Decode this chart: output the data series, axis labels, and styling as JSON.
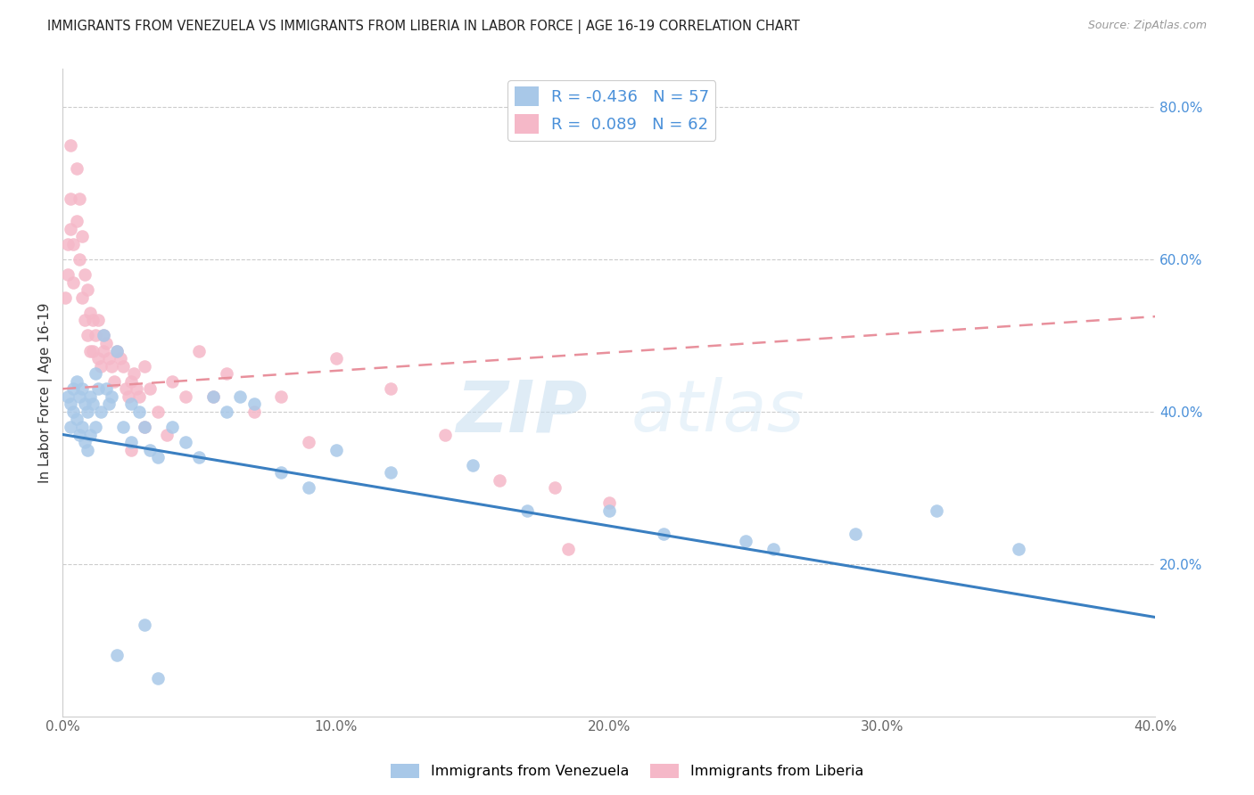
{
  "title": "IMMIGRANTS FROM VENEZUELA VS IMMIGRANTS FROM LIBERIA IN LABOR FORCE | AGE 16-19 CORRELATION CHART",
  "source": "Source: ZipAtlas.com",
  "ylabel": "In Labor Force | Age 16-19",
  "xlim": [
    0.0,
    0.4
  ],
  "ylim": [
    0.0,
    0.85
  ],
  "xticks": [
    0.0,
    0.1,
    0.2,
    0.3,
    0.4
  ],
  "yticks_right": [
    0.2,
    0.4,
    0.6,
    0.8
  ],
  "legend_r_venezuela": "-0.436",
  "legend_n_venezuela": "57",
  "legend_r_liberia": "0.089",
  "legend_n_liberia": "62",
  "color_venezuela": "#a8c8e8",
  "color_liberia": "#f5b8c8",
  "color_trendline_venezuela": "#3a7fc1",
  "color_trendline_liberia": "#e8909c",
  "watermark_zip": "ZIP",
  "watermark_atlas": "atlas",
  "trendline_ven_x0": 0.0,
  "trendline_ven_y0": 0.37,
  "trendline_ven_x1": 0.4,
  "trendline_ven_y1": 0.13,
  "trendline_lib_x0": 0.0,
  "trendline_lib_y0": 0.43,
  "trendline_lib_x1": 0.4,
  "trendline_lib_y1": 0.525,
  "venezuela_scatter_x": [
    0.002,
    0.003,
    0.003,
    0.004,
    0.004,
    0.005,
    0.005,
    0.006,
    0.006,
    0.007,
    0.007,
    0.008,
    0.008,
    0.009,
    0.009,
    0.01,
    0.01,
    0.011,
    0.012,
    0.012,
    0.013,
    0.014,
    0.015,
    0.016,
    0.017,
    0.018,
    0.02,
    0.022,
    0.025,
    0.025,
    0.028,
    0.03,
    0.032,
    0.035,
    0.04,
    0.045,
    0.05,
    0.055,
    0.06,
    0.065,
    0.07,
    0.08,
    0.09,
    0.1,
    0.12,
    0.15,
    0.17,
    0.2,
    0.22,
    0.25,
    0.26,
    0.29,
    0.32,
    0.35,
    0.02,
    0.03,
    0.035
  ],
  "venezuela_scatter_y": [
    0.42,
    0.41,
    0.38,
    0.43,
    0.4,
    0.44,
    0.39,
    0.42,
    0.37,
    0.43,
    0.38,
    0.41,
    0.36,
    0.4,
    0.35,
    0.42,
    0.37,
    0.41,
    0.45,
    0.38,
    0.43,
    0.4,
    0.5,
    0.43,
    0.41,
    0.42,
    0.48,
    0.38,
    0.41,
    0.36,
    0.4,
    0.38,
    0.35,
    0.34,
    0.38,
    0.36,
    0.34,
    0.42,
    0.4,
    0.42,
    0.41,
    0.32,
    0.3,
    0.35,
    0.32,
    0.33,
    0.27,
    0.27,
    0.24,
    0.23,
    0.22,
    0.24,
    0.27,
    0.22,
    0.08,
    0.12,
    0.05
  ],
  "liberia_scatter_x": [
    0.001,
    0.002,
    0.002,
    0.003,
    0.003,
    0.004,
    0.004,
    0.005,
    0.005,
    0.006,
    0.006,
    0.007,
    0.007,
    0.008,
    0.008,
    0.009,
    0.009,
    0.01,
    0.01,
    0.011,
    0.011,
    0.012,
    0.013,
    0.013,
    0.014,
    0.015,
    0.015,
    0.016,
    0.017,
    0.018,
    0.019,
    0.02,
    0.021,
    0.022,
    0.023,
    0.024,
    0.025,
    0.026,
    0.027,
    0.028,
    0.03,
    0.032,
    0.035,
    0.038,
    0.04,
    0.045,
    0.05,
    0.055,
    0.06,
    0.07,
    0.08,
    0.09,
    0.1,
    0.12,
    0.14,
    0.16,
    0.18,
    0.2,
    0.025,
    0.03,
    0.185,
    0.003
  ],
  "liberia_scatter_y": [
    0.55,
    0.62,
    0.58,
    0.68,
    0.64,
    0.62,
    0.57,
    0.72,
    0.65,
    0.68,
    0.6,
    0.63,
    0.55,
    0.58,
    0.52,
    0.56,
    0.5,
    0.53,
    0.48,
    0.52,
    0.48,
    0.5,
    0.47,
    0.52,
    0.46,
    0.5,
    0.48,
    0.49,
    0.47,
    0.46,
    0.44,
    0.48,
    0.47,
    0.46,
    0.43,
    0.42,
    0.44,
    0.45,
    0.43,
    0.42,
    0.46,
    0.43,
    0.4,
    0.37,
    0.44,
    0.42,
    0.48,
    0.42,
    0.45,
    0.4,
    0.42,
    0.36,
    0.47,
    0.43,
    0.37,
    0.31,
    0.3,
    0.28,
    0.35,
    0.38,
    0.22,
    0.75
  ]
}
